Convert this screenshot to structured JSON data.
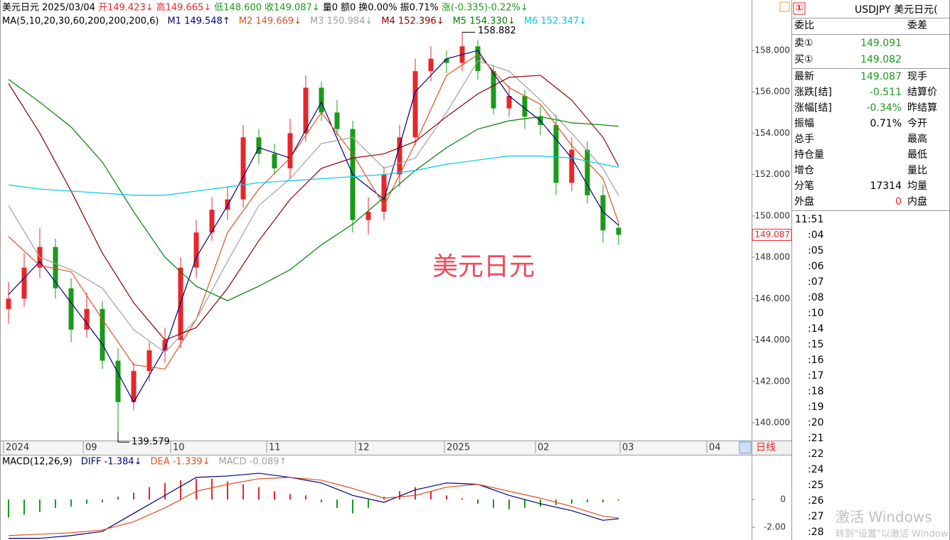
{
  "header": {
    "items": [
      {
        "text": "美元日元",
        "color": "#000000"
      },
      {
        "text": "2025/03/04",
        "color": "#000000"
      },
      {
        "text": "开149.423↓",
        "color": "#e8262a"
      },
      {
        "text": "高149.665↓",
        "color": "#e8262a"
      },
      {
        "text": "低148.600",
        "color": "#1a9a1a"
      },
      {
        "text": "收149.087↓",
        "color": "#1a9a1a"
      },
      {
        "text": "量0",
        "color": "#000000"
      },
      {
        "text": "额0",
        "color": "#000000"
      },
      {
        "text": "换0.00%",
        "color": "#000000"
      },
      {
        "text": "振0.71%",
        "color": "#000000"
      },
      {
        "text": "涨(-0.335)-0.22%↓",
        "color": "#1a9a1a"
      }
    ]
  },
  "chart_data": [
    {
      "type": "candlestick",
      "ma_title": "MA(5,10,20,30,60,200,200,200,6)",
      "ylim": [
        139.14,
        160.44
      ],
      "yticks": [
        {
          "value": 140,
          "label": "140.000"
        },
        {
          "value": 142,
          "label": "142.000"
        },
        {
          "value": 144,
          "label": "144.000"
        },
        {
          "value": 146,
          "label": "146.000"
        },
        {
          "value": 148,
          "label": "148.000"
        },
        {
          "value": 150,
          "label": "150.000"
        },
        {
          "value": 152,
          "label": "152.000"
        },
        {
          "value": 154,
          "label": "154.000"
        },
        {
          "value": 156,
          "label": "156.000"
        },
        {
          "value": 158,
          "label": "158.000"
        }
      ],
      "x_axis_labels": [
        "2024",
        "09",
        "10",
        "11",
        "12",
        "2025",
        "02",
        "03",
        "04"
      ],
      "period_button": "日线",
      "up_color": "#e8262a",
      "down_color": "#1a9a1a",
      "candles": {
        "open": [
          145.5,
          146.0,
          147.5,
          148.5,
          146.5,
          144.5,
          145.5,
          143.0,
          141.0,
          142.5,
          143.5,
          144.0,
          147.5,
          149.2,
          150.3,
          150.8,
          153.8,
          153.0,
          152.3,
          154.0,
          156.2,
          155.0,
          154.2,
          149.8,
          150.2,
          152.0,
          153.8,
          157.0,
          157.6,
          157.4,
          158.2,
          157.0,
          155.2,
          155.8,
          154.8,
          154.4,
          151.6,
          153.2,
          151.0,
          149.423
        ],
        "high": [
          146.8,
          148.2,
          149.4,
          148.9,
          147.0,
          146.3,
          145.9,
          143.6,
          142.9,
          143.9,
          144.6,
          148.0,
          149.8,
          150.9,
          151.4,
          154.4,
          154.2,
          153.5,
          154.7,
          156.8,
          156.5,
          155.6,
          154.6,
          150.9,
          152.4,
          154.4,
          157.6,
          158.2,
          158.0,
          158.882,
          158.5,
          157.3,
          156.3,
          156.1,
          155.3,
          154.9,
          153.8,
          153.6,
          151.5,
          149.665
        ],
        "low": [
          144.8,
          145.6,
          147.0,
          146.0,
          143.9,
          144.1,
          142.6,
          139.579,
          140.6,
          142.0,
          142.9,
          143.6,
          147.0,
          148.8,
          149.8,
          150.4,
          152.5,
          152.0,
          151.8,
          153.6,
          154.6,
          153.9,
          149.2,
          149.1,
          149.8,
          151.4,
          153.4,
          156.5,
          156.9,
          157.0,
          156.6,
          154.9,
          154.8,
          154.2,
          153.9,
          151.0,
          151.2,
          150.6,
          148.7,
          148.6
        ],
        "close": [
          146.0,
          147.5,
          148.5,
          146.5,
          144.5,
          145.5,
          143.0,
          141.0,
          142.5,
          143.5,
          144.0,
          147.5,
          149.2,
          150.3,
          150.8,
          153.8,
          153.0,
          152.3,
          154.0,
          156.2,
          155.0,
          154.2,
          149.8,
          150.2,
          152.0,
          153.8,
          157.0,
          157.6,
          157.4,
          158.2,
          157.0,
          155.2,
          155.8,
          154.8,
          154.4,
          151.6,
          153.2,
          151.0,
          149.3,
          149.087
        ]
      },
      "series": [
        {
          "name": "M1 149.548↑",
          "color": "#000080",
          "x": [
            0,
            2,
            4,
            6,
            8,
            10,
            12,
            14,
            16,
            18,
            20,
            22,
            24,
            26,
            28,
            30,
            32,
            34,
            36,
            38,
            39
          ],
          "values": [
            146.2,
            147.8,
            145.8,
            143.8,
            141.0,
            143.6,
            148.0,
            150.5,
            153.3,
            152.8,
            155.5,
            152.0,
            150.8,
            156.0,
            157.6,
            158.0,
            155.8,
            154.6,
            152.8,
            150.2,
            149.548
          ]
        },
        {
          "name": "M2 149.669↓",
          "color": "#e0501e",
          "x": [
            0,
            2,
            4,
            6,
            8,
            10,
            12,
            14,
            16,
            18,
            20,
            22,
            24,
            26,
            28,
            30,
            32,
            34,
            36,
            38,
            39
          ],
          "values": [
            149.0,
            147.6,
            147.3,
            145.0,
            142.8,
            142.6,
            145.0,
            149.2,
            151.3,
            152.8,
            155.0,
            153.0,
            150.5,
            153.5,
            156.8,
            157.8,
            156.2,
            155.4,
            153.4,
            151.8,
            149.669
          ]
        },
        {
          "name": "M3 150.984↓",
          "color": "#a0a0a0",
          "x": [
            0,
            2,
            4,
            6,
            8,
            10,
            12,
            14,
            16,
            18,
            20,
            22,
            24,
            26,
            28,
            30,
            32,
            34,
            36,
            38,
            39
          ],
          "values": [
            150.5,
            148.0,
            147.4,
            146.5,
            144.5,
            143.4,
            145.0,
            147.8,
            150.5,
            151.8,
            153.5,
            153.8,
            152.3,
            152.8,
            155.0,
            157.5,
            157.0,
            155.6,
            154.0,
            152.3,
            150.984
          ]
        },
        {
          "name": "M4 152.396↓",
          "color": "#8b0000",
          "x": [
            0,
            2,
            4,
            6,
            8,
            10,
            12,
            14,
            16,
            18,
            20,
            22,
            24,
            26,
            28,
            30,
            32,
            34,
            36,
            38,
            39
          ],
          "values": [
            156.4,
            154.0,
            151.2,
            148.2,
            145.8,
            144.0,
            144.6,
            146.5,
            148.8,
            150.8,
            152.3,
            152.8,
            153.0,
            153.6,
            154.8,
            155.9,
            156.7,
            156.8,
            155.6,
            153.8,
            152.396
          ]
        },
        {
          "name": "M5 154.330↓",
          "color": "#008000",
          "x": [
            0,
            2,
            4,
            6,
            8,
            10,
            12,
            14,
            16,
            18,
            20,
            22,
            24,
            26,
            28,
            30,
            32,
            34,
            36,
            38,
            39
          ],
          "values": [
            156.6,
            155.5,
            154.3,
            152.6,
            150.2,
            148.0,
            146.6,
            145.9,
            146.6,
            147.4,
            148.6,
            149.6,
            150.9,
            152.2,
            153.3,
            154.2,
            154.6,
            154.8,
            154.5,
            154.4,
            154.33
          ]
        },
        {
          "name": "M6 152.347↓",
          "color": "#00c8e8",
          "x": [
            0,
            2,
            4,
            6,
            8,
            10,
            12,
            14,
            16,
            18,
            20,
            22,
            24,
            26,
            28,
            30,
            32,
            34,
            36,
            38,
            39
          ],
          "values": [
            151.5,
            151.3,
            151.2,
            151.1,
            151.0,
            151.0,
            151.2,
            151.4,
            151.6,
            151.7,
            151.8,
            151.9,
            152.0,
            152.2,
            152.5,
            152.7,
            152.9,
            152.9,
            152.8,
            152.5,
            152.347
          ]
        }
      ],
      "annotations": {
        "high": "158.882",
        "low": "139.579",
        "last": "149.087"
      },
      "watermark": "美元日元"
    },
    {
      "type": "macd",
      "title": "MACD(12,26,9)",
      "ylim": [
        -2.92,
        2.21
      ],
      "yticks": [
        0,
        {
          "value": -2,
          "label": "-2.00"
        }
      ],
      "histogram": {
        "name": "MACD -0.089↑",
        "color": "#a0a0a0",
        "up_color": "#e8262a",
        "down_color": "#1a9a1a",
        "values": [
          -1.3,
          -1.1,
          -0.9,
          -0.6,
          -0.5,
          -0.3,
          -0.2,
          0.2,
          0.5,
          0.9,
          1.2,
          1.4,
          1.5,
          1.5,
          1.3,
          1.1,
          0.9,
          0.6,
          0.4,
          0.3,
          -0.2,
          -0.6,
          -1.0,
          -0.6,
          0.2,
          0.6,
          0.9,
          0.6,
          0.3,
          0.1,
          -0.3,
          -0.6,
          -0.7,
          -0.6,
          -0.5,
          -0.4,
          -0.3,
          -0.2,
          -0.2,
          -0.089
        ]
      },
      "series": [
        {
          "name": "DIFF -1.384↓",
          "color": "#000080",
          "x": [
            0,
            2,
            4,
            6,
            8,
            10,
            12,
            14,
            16,
            18,
            20,
            22,
            24,
            26,
            28,
            30,
            32,
            34,
            36,
            38,
            39
          ],
          "values": [
            -2.8,
            -2.8,
            -2.6,
            -2.3,
            -1.0,
            0.3,
            1.6,
            1.7,
            1.9,
            1.6,
            1.2,
            0.3,
            -0.2,
            0.7,
            1.2,
            1.1,
            0.3,
            -0.3,
            -0.8,
            -1.5,
            -1.384
          ]
        },
        {
          "name": "DEA -1.339↓",
          "color": "#e0501e",
          "x": [
            0,
            2,
            4,
            6,
            8,
            10,
            12,
            14,
            16,
            18,
            20,
            22,
            24,
            26,
            28,
            30,
            32,
            34,
            36,
            38,
            39
          ],
          "values": [
            -2.6,
            -2.5,
            -2.4,
            -2.2,
            -1.6,
            -0.6,
            0.6,
            1.1,
            1.5,
            1.6,
            1.4,
            0.8,
            0.1,
            0.3,
            0.9,
            1.1,
            0.6,
            0.1,
            -0.5,
            -1.2,
            -1.339
          ]
        }
      ]
    }
  ],
  "quote_panel": {
    "icon": "①",
    "title": "USDJPY 美元日元(",
    "rows": [
      {
        "label": "委比",
        "right": "委差"
      },
      {
        "label": "卖①",
        "value": "149.091",
        "value_color": "#1a9a1a"
      },
      {
        "label": "买①",
        "value": "149.082",
        "value_color": "#1a9a1a"
      },
      {
        "label": "最新",
        "value": "149.087",
        "value_color": "#1a9a1a",
        "right": "现手"
      },
      {
        "label": "涨跌[结]",
        "value": "-0.511",
        "value_color": "#1a9a1a",
        "right": "结算价"
      },
      {
        "label": "涨幅[结]",
        "value": "-0.34%",
        "value_color": "#1a9a1a",
        "right": "昨结算"
      },
      {
        "label": "振幅",
        "value": "0.71%",
        "value_color": "#000000",
        "right": "今开"
      },
      {
        "label": "总手",
        "right": "最高"
      },
      {
        "label": "持仓量",
        "right": "最低"
      },
      {
        "label": "增仓",
        "right": "量比"
      },
      {
        "label": "分笔",
        "value": "17314",
        "value_color": "#000000",
        "right": "均量"
      },
      {
        "label": "外盘",
        "value": "0",
        "value_color": "#e8262a",
        "right": "内盘"
      }
    ],
    "times": [
      "11:51",
      ":04",
      ":05",
      ":06",
      ":07",
      ":08",
      ":10",
      ":14",
      ":15",
      ":16",
      ":17",
      ":18",
      ":19",
      ":20",
      ":21",
      ":22",
      ":24",
      ":25",
      ":26",
      ":27",
      ":28"
    ]
  },
  "os_watermark": {
    "line1": "激活 Windows",
    "line2": "转到\"设置\"以激活 Windows"
  }
}
